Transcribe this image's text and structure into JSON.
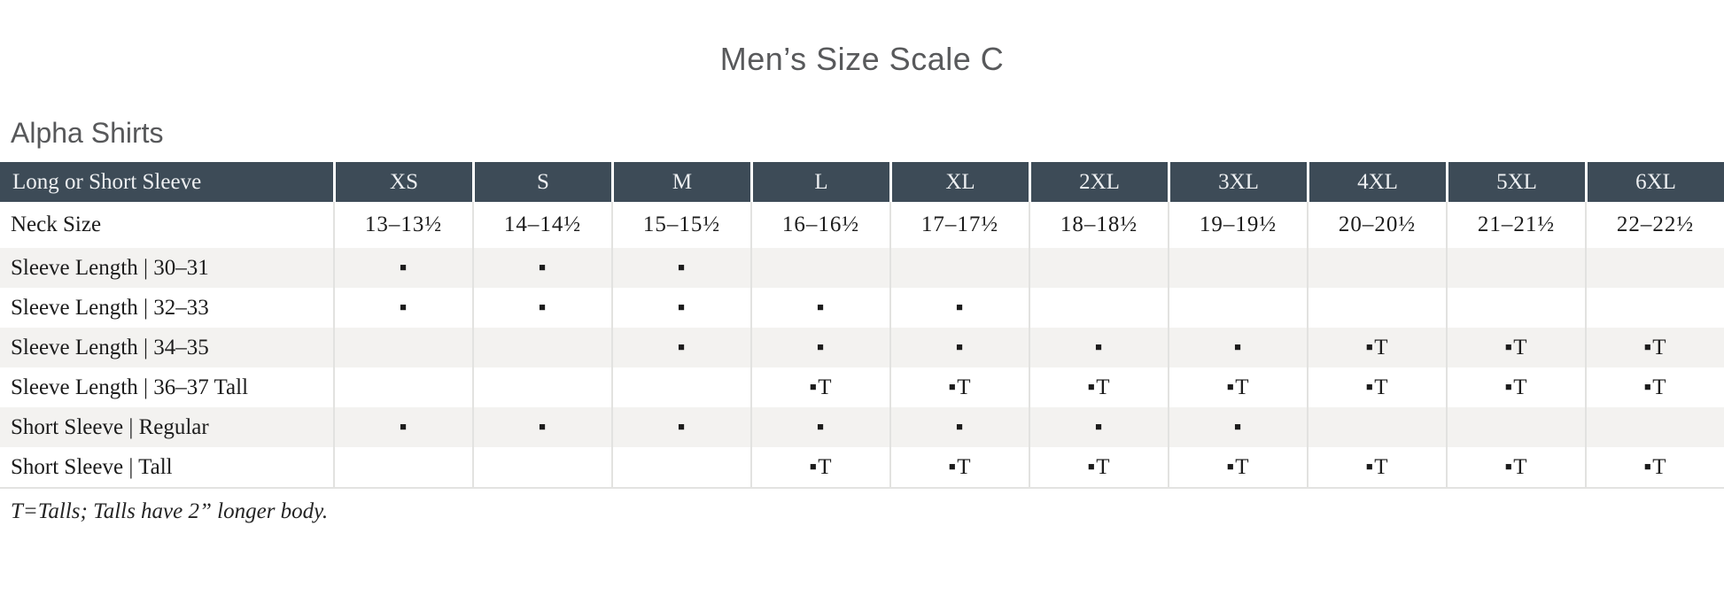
{
  "page": {
    "title": "Men’s Size Scale C",
    "section_heading": "Alpha Shirts",
    "footnote": "T=Talls; Talls have 2” longer body."
  },
  "colors": {
    "header_bg": "#3d4b57",
    "header_text": "#edeff1",
    "stripe_bg": "#f3f2f0",
    "divider": "#e2e2e0",
    "heading_text": "#58595b"
  },
  "table": {
    "header": {
      "label": "Long or Short Sleeve",
      "sizes": [
        "XS",
        "S",
        "M",
        "L",
        "XL",
        "2XL",
        "3XL",
        "4XL",
        "5XL",
        "6XL"
      ]
    },
    "rows": [
      {
        "label": "Neck Size",
        "cells": [
          "13–13½",
          "14–14½",
          "15–15½",
          "16–16½",
          "17–17½",
          "18–18½",
          "19–19½",
          "20–20½",
          "21–21½",
          "22–22½"
        ]
      },
      {
        "label": "Sleeve Length  |  30–31",
        "cells": [
          "▪",
          "▪",
          "▪",
          "",
          "",
          "",
          "",
          "",
          "",
          ""
        ]
      },
      {
        "label": "Sleeve Length  |  32–33",
        "cells": [
          "▪",
          "▪",
          "▪",
          "▪",
          "▪",
          "",
          "",
          "",
          "",
          ""
        ]
      },
      {
        "label": "Sleeve Length  |  34–35",
        "cells": [
          "",
          "",
          "▪",
          "▪",
          "▪",
          "▪",
          "▪",
          "▪T",
          "▪T",
          "▪T"
        ]
      },
      {
        "label": "Sleeve Length  |  36–37 Tall",
        "cells": [
          "",
          "",
          "",
          "▪T",
          "▪T",
          "▪T",
          "▪T",
          "▪T",
          "▪T",
          "▪T"
        ]
      },
      {
        "label": "Short Sleeve  |  Regular",
        "cells": [
          "▪",
          "▪",
          "▪",
          "▪",
          "▪",
          "▪",
          "▪",
          "",
          "",
          ""
        ]
      },
      {
        "label": "Short Sleeve  |  Tall",
        "cells": [
          "",
          "",
          "",
          "▪T",
          "▪T",
          "▪T",
          "▪T",
          "▪T",
          "▪T",
          "▪T"
        ]
      }
    ]
  }
}
